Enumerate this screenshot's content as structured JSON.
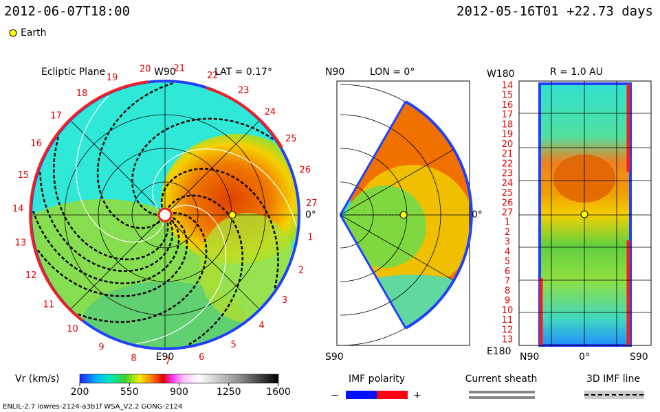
{
  "header": {
    "time": "2012-06-07T18:00",
    "run": "2012-05-16T01 +22.73 days"
  },
  "legend": {
    "earth": "Earth"
  },
  "ecliptic": {
    "title": "Ecliptic Plane",
    "top": "W90",
    "lat": "LAT = 0.17°",
    "bottom": "E90",
    "right": "0°",
    "carrington": [
      "27",
      "26",
      "25",
      "24",
      "23",
      "22",
      "21",
      "20",
      "19",
      "18",
      "17",
      "16",
      "15",
      "14",
      "13",
      "12",
      "11",
      "10",
      "9",
      "8",
      "7",
      "6",
      "5",
      "4",
      "3",
      "2",
      "1"
    ]
  },
  "meridional": {
    "top": "N90",
    "lon": "LON = 0°",
    "bottom": "S90",
    "right": "0°"
  },
  "sphere": {
    "top": "W180",
    "radius": "R = 1.0 AU",
    "bottom": "E180",
    "left": "N90",
    "center": "0°",
    "right": "S90",
    "rows": [
      "14",
      "15",
      "16",
      "17",
      "18",
      "19",
      "20",
      "21",
      "22",
      "23",
      "24",
      "25",
      "26",
      "27",
      "1",
      "2",
      "3",
      "4",
      "5",
      "6",
      "7",
      "8",
      "9",
      "10",
      "11",
      "12",
      "13"
    ]
  },
  "colorbar": {
    "label": "Vr (km/s)",
    "range": [
      200,
      1600
    ],
    "ticks": [
      200,
      550,
      900,
      1250,
      1600
    ]
  },
  "imf": {
    "title": "IMF polarity",
    "minus": "−",
    "plus": "+"
  },
  "sheath": {
    "title": "Current sheath"
  },
  "imfline": {
    "title": "3D IMF line"
  },
  "footer": {
    "text": "ENLIL-2.7 lowres-2124-a3b1f WSA_V2.2 GONG-2124"
  }
}
